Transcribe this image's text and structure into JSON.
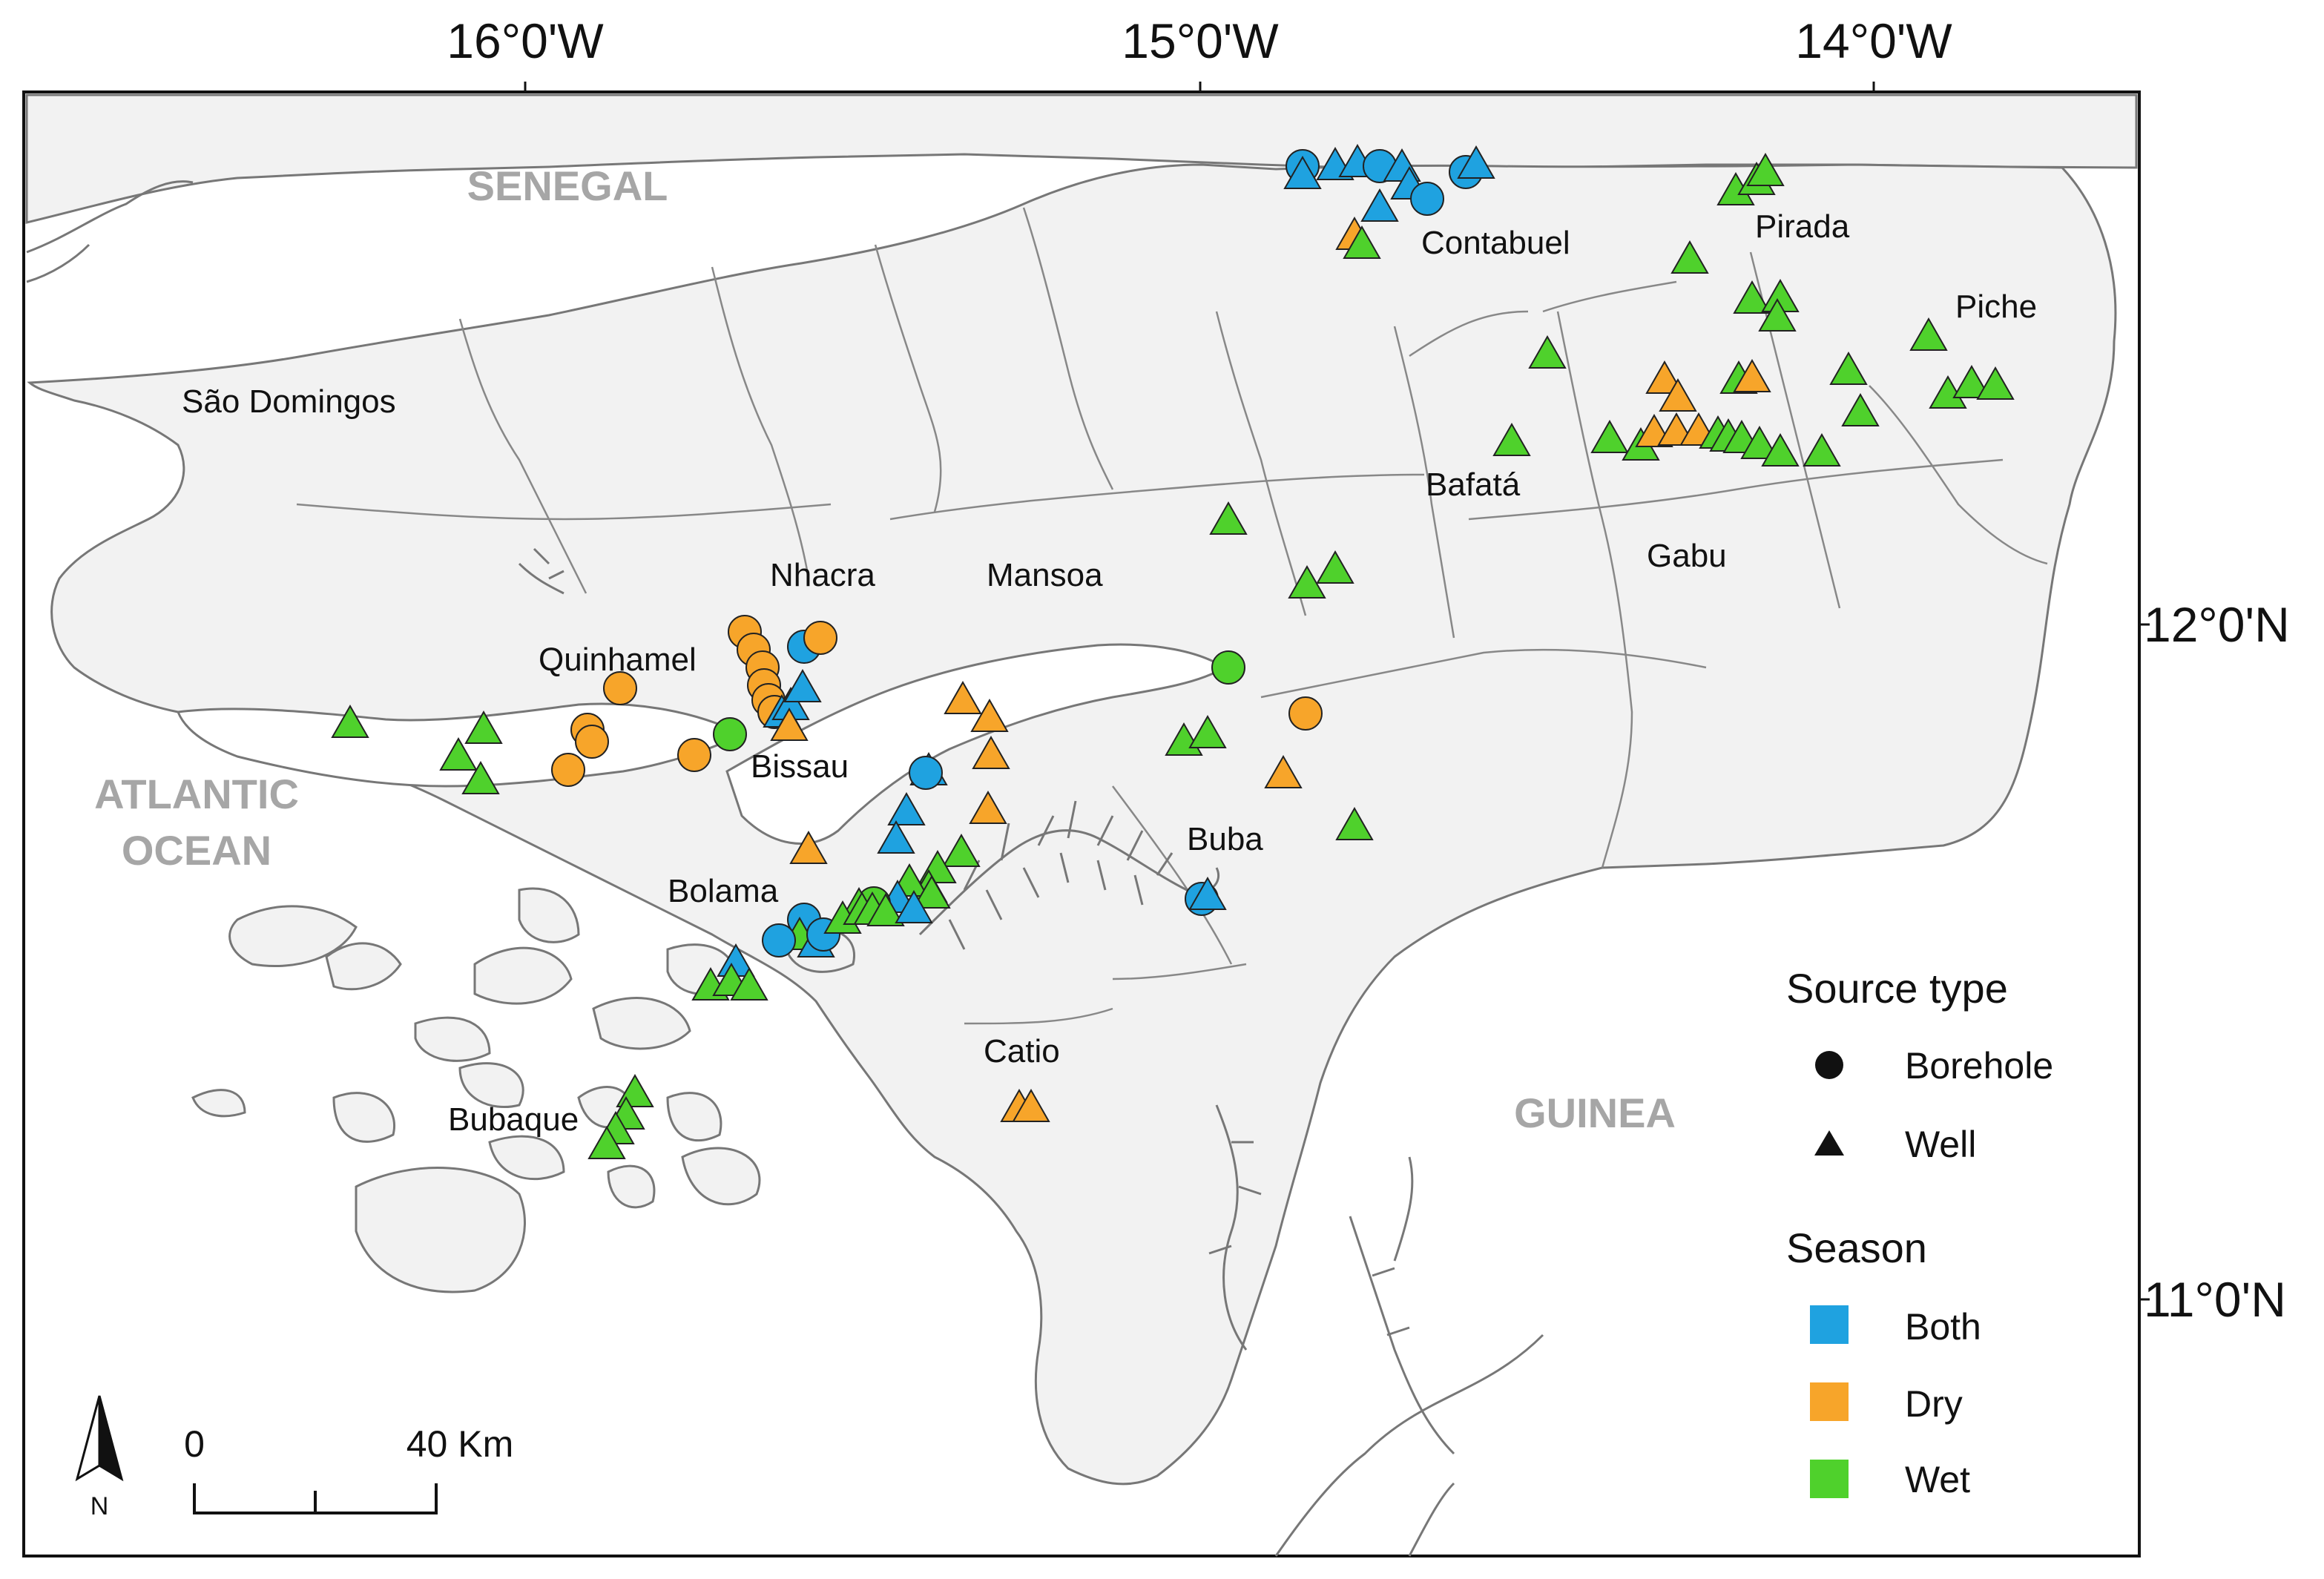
{
  "axes": {
    "top_labels": [
      "16°0'W",
      "15°0'W",
      "14°0'W"
    ],
    "right_labels": [
      "12°0'N",
      "11°0'N"
    ]
  },
  "countries": [
    "SENEGAL",
    "GUINEA"
  ],
  "ocean": [
    "ATLANTIC",
    "OCEAN"
  ],
  "places": [
    "São Domingos",
    "Contabuel",
    "Pirada",
    "Piche",
    "Bafatá",
    "Gabu",
    "Nhacra",
    "Mansoa",
    "Quinhamel",
    "Bissau",
    "Bolama",
    "Buba",
    "Catio",
    "Bubaque"
  ],
  "legend": {
    "source_title": "Source type",
    "source_items": [
      {
        "label": "Borehole",
        "shape": "circle"
      },
      {
        "label": "Well",
        "shape": "triangle"
      }
    ],
    "season_title": "Season",
    "season_items": [
      {
        "label": "Both",
        "color": "#1fa2e0"
      },
      {
        "label": "Dry",
        "color": "#f7a52a"
      },
      {
        "label": "Wet",
        "color": "#4fd12c"
      }
    ]
  },
  "scale_bar": {
    "start": "0",
    "end": "40 Km"
  },
  "north_arrow": {
    "label": "N"
  },
  "colors": {
    "land": "#f2f2f2",
    "outline": "#777777",
    "Both": "#1fa2e0",
    "Dry": "#f7a52a",
    "Wet": "#4fd12c"
  }
}
